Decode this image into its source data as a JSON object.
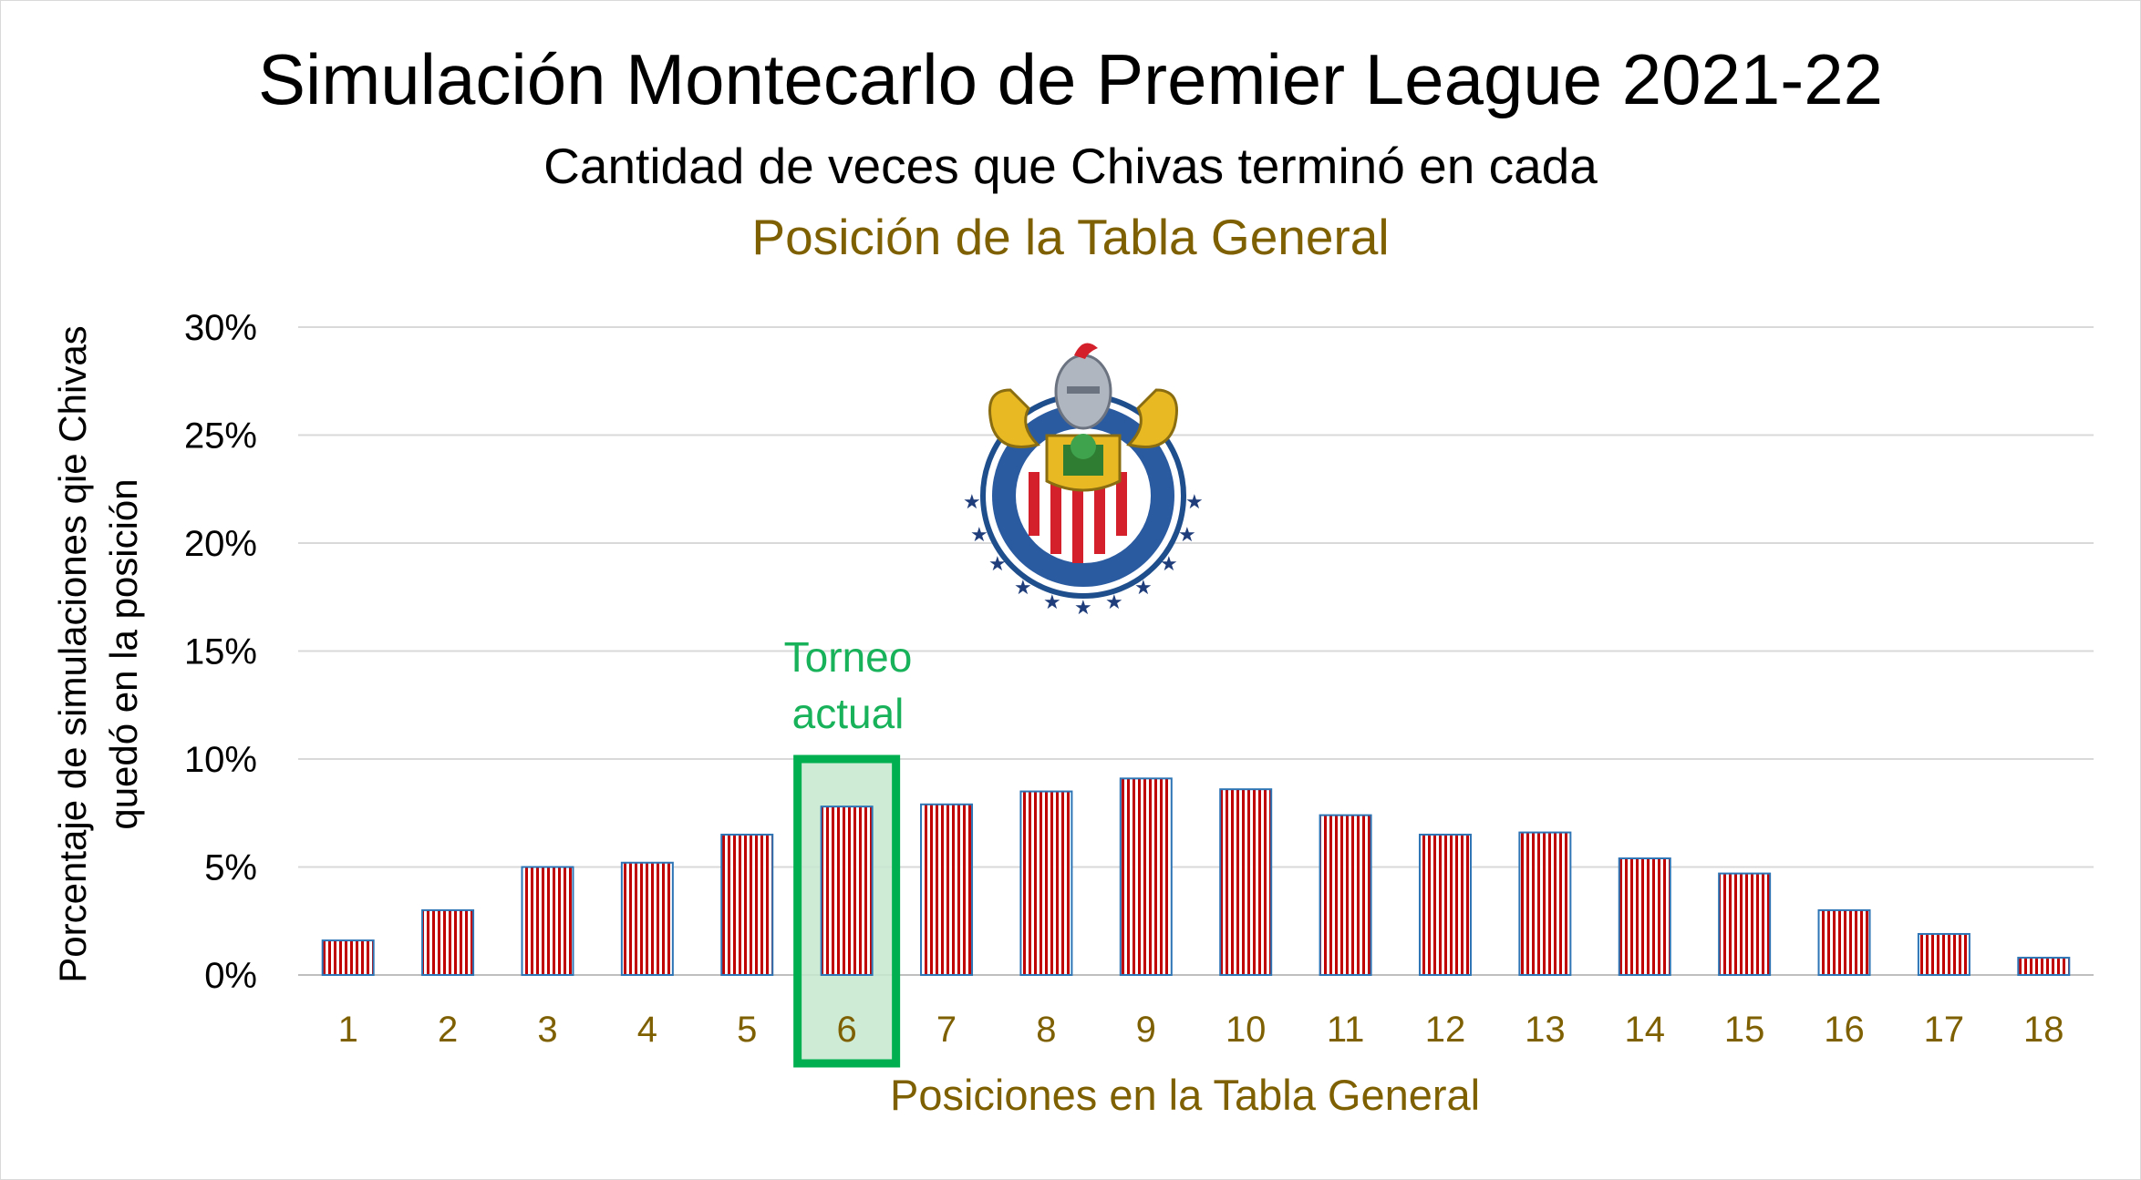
{
  "chart_data": {
    "type": "bar",
    "title": "Simulación Montecarlo de Premier League 2021-22",
    "subtitle": "Cantidad de veces que Chivas terminó en cada",
    "subtitle2": "Posición de la Tabla General",
    "xlabel": "Posiciones en la Tabla General",
    "ylabel": "Porcentaje de simulaciones qie Chivas quedó en la posición",
    "categories": [
      "1",
      "2",
      "3",
      "4",
      "5",
      "6",
      "7",
      "8",
      "9",
      "10",
      "11",
      "12",
      "13",
      "14",
      "15",
      "16",
      "17",
      "18"
    ],
    "values": [
      1.6,
      3.0,
      5.0,
      5.2,
      6.5,
      7.8,
      7.9,
      8.5,
      9.1,
      8.6,
      7.4,
      6.5,
      6.6,
      5.4,
      4.7,
      3.0,
      1.9,
      0.8
    ],
    "value_unit": "%",
    "ylim": [
      0,
      30
    ],
    "yticks": [
      "0%",
      "5%",
      "10%",
      "15%",
      "20%",
      "25%",
      "30%"
    ],
    "grid": true,
    "bar_fill": "red and white vertical stripes",
    "bar_colors": {
      "stripe": "#c00000",
      "background": "#ffffff",
      "outline": "#2e75b6"
    },
    "highlight": {
      "category": "6",
      "label": "Torneo actual",
      "color": "#00b050"
    },
    "logo": "Club Deportivo Guadalajara crest"
  }
}
